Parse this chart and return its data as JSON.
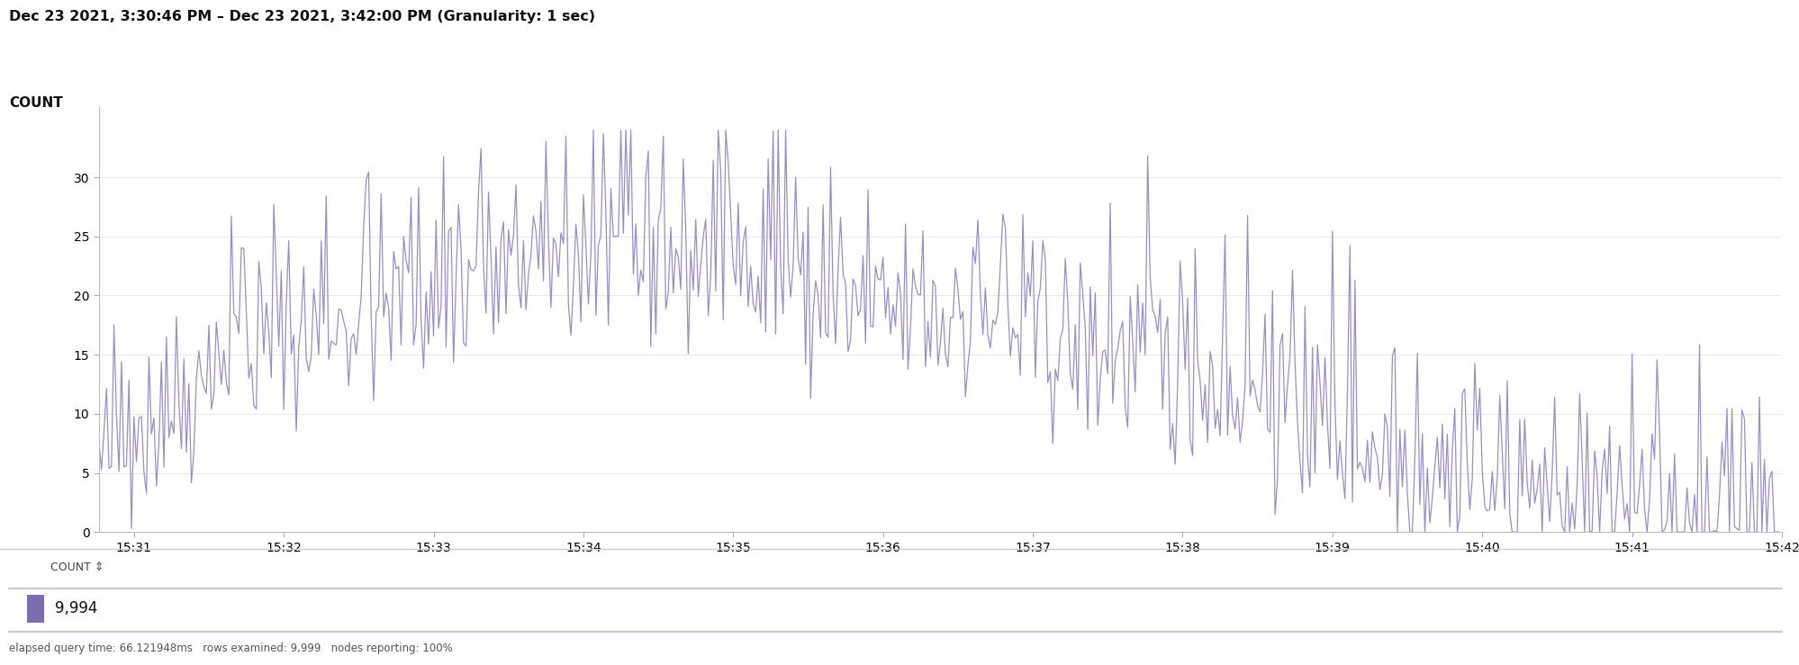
{
  "title": "Dec 23 2021, 3:30:46 PM – Dec 23 2021, 3:42:00 PM (Granularity: 1 sec)",
  "ylabel": "COUNT",
  "x_tick_labels": [
    "15:31",
    "15:32",
    "15:33",
    "15:34",
    "15:35",
    "15:36",
    "15:37",
    "15:38",
    "15:39",
    "15:40",
    "15:41",
    "15:42"
  ],
  "ylim": [
    0,
    36
  ],
  "yticks": [
    0,
    5,
    10,
    15,
    20,
    25,
    30
  ],
  "line_color": "#9b8ec8",
  "line_width": 0.9,
  "background_color": "#ffffff",
  "total_count": "9,994",
  "footer": "elapsed query time: 66.121948ms   rows examined: 9,999   nodes reporting: 100%",
  "legend_label": "COUNT",
  "legend_color": "#7b6db0",
  "legend_bg": "#f0f0f8",
  "title_fontsize": 11.5,
  "label_fontsize": 11,
  "tick_fontsize": 10,
  "num_points": 674,
  "seed": 42
}
